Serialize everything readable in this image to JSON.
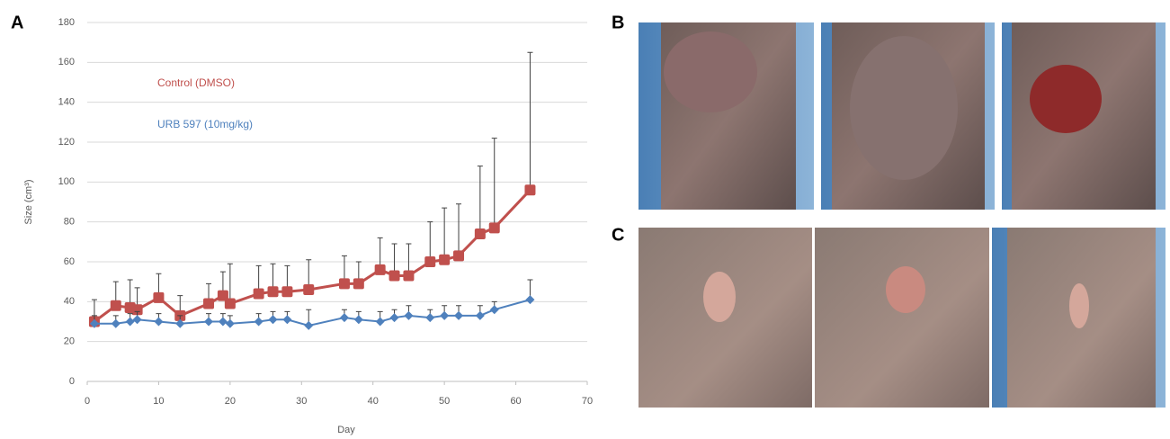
{
  "panel_labels": [
    "A",
    "B",
    "C"
  ],
  "chart_data": {
    "type": "line",
    "x_label": "Day",
    "y_label": "Size (cm³)",
    "xlim": [
      0,
      70
    ],
    "xticks": [
      0,
      10,
      20,
      30,
      40,
      50,
      60,
      70
    ],
    "ylim": [
      0,
      180
    ],
    "yticks": [
      0,
      20,
      40,
      60,
      80,
      100,
      120,
      140,
      160,
      180
    ],
    "grid": true,
    "x": [
      1,
      4,
      6,
      7,
      10,
      13,
      17,
      19,
      20,
      24,
      26,
      28,
      31,
      36,
      38,
      41,
      43,
      45,
      48,
      50,
      52,
      55,
      57,
      62
    ],
    "series": [
      {
        "name": "Control (DMSO)",
        "color": "#c0504d",
        "marker": "square",
        "values": [
          30,
          38,
          37,
          36,
          42,
          33,
          39,
          43,
          39,
          44,
          45,
          45,
          46,
          49,
          49,
          56,
          53,
          53,
          60,
          61,
          63,
          74,
          77,
          96
        ],
        "errors": [
          11,
          12,
          14,
          11,
          12,
          10,
          10,
          12,
          20,
          14,
          14,
          13,
          15,
          14,
          11,
          16,
          16,
          16,
          20,
          26,
          26,
          34,
          45,
          69
        ]
      },
      {
        "name": "URB 597 (10mg/kg)",
        "color": "#4f81bd",
        "marker": "diamond",
        "values": [
          29,
          29,
          30,
          31,
          30,
          29,
          30,
          30,
          29,
          30,
          31,
          31,
          28,
          32,
          31,
          30,
          32,
          33,
          32,
          33,
          33,
          33,
          36,
          41
        ],
        "errors": [
          4,
          4,
          4,
          4,
          4,
          4,
          4,
          4,
          4,
          4,
          4,
          4,
          8,
          4,
          4,
          5,
          4,
          5,
          4,
          5,
          5,
          5,
          4,
          10
        ]
      }
    ]
  }
}
